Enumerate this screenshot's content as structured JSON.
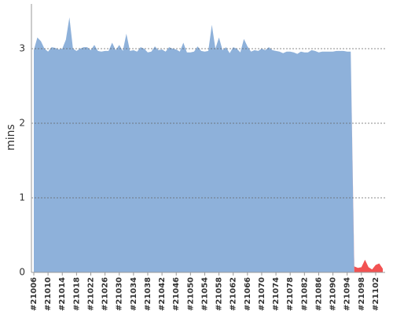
{
  "chart_data": {
    "type": "stacked_area",
    "ylabel": "mins",
    "categories": [
      "#21006",
      null,
      null,
      null,
      "#21010",
      null,
      null,
      null,
      "#21014",
      null,
      null,
      null,
      "#21018",
      null,
      null,
      null,
      "#21022",
      null,
      null,
      null,
      "#21026",
      null,
      null,
      null,
      "#21030",
      null,
      null,
      null,
      "#21034",
      null,
      null,
      null,
      "#21038",
      null,
      null,
      null,
      "#21042",
      null,
      null,
      null,
      "#21046",
      null,
      null,
      null,
      "#21050",
      null,
      null,
      null,
      "#21054",
      null,
      null,
      null,
      "#21058",
      null,
      null,
      null,
      "#21062",
      null,
      null,
      null,
      "#21066",
      null,
      null,
      null,
      "#21070",
      null,
      null,
      null,
      "#21074",
      null,
      null,
      null,
      "#21078",
      null,
      null,
      null,
      "#21082",
      null,
      null,
      null,
      "#21086",
      null,
      null,
      null,
      "#21090",
      null,
      null,
      null,
      "#21094",
      null,
      null,
      null,
      "#21098",
      null,
      null,
      null,
      "#21102",
      null,
      null
    ],
    "series": [
      {
        "color": "#8eb1da",
        "values": [
          2.98,
          3.15,
          3.1,
          3.0,
          2.96,
          3.02,
          3.01,
          2.99,
          3.0,
          3.12,
          3.42,
          3.0,
          2.97,
          3.0,
          3.02,
          3.02,
          2.98,
          3.05,
          2.97,
          2.96,
          2.97,
          2.97,
          3.08,
          2.98,
          3.05,
          2.97,
          3.2,
          2.97,
          2.98,
          2.96,
          3.02,
          3.0,
          2.95,
          2.96,
          3.03,
          2.98,
          2.99,
          2.96,
          3.02,
          3.0,
          2.99,
          2.96,
          3.08,
          2.95,
          2.95,
          2.96,
          3.03,
          2.97,
          2.96,
          2.97,
          3.32,
          3.0,
          3.15,
          2.98,
          3.02,
          2.94,
          3.02,
          3.0,
          2.95,
          3.13,
          3.03,
          2.96,
          2.98,
          2.97,
          3.0,
          2.98,
          3.02,
          2.98,
          2.97,
          2.96,
          2.94,
          2.96,
          2.96,
          2.95,
          2.93,
          2.96,
          2.95,
          2.95,
          2.98,
          2.97,
          2.95,
          2.96,
          2.96,
          2.96,
          2.96,
          2.97,
          2.97,
          2.97,
          2.96,
          2.96,
          0,
          0,
          0,
          0,
          0,
          0,
          0,
          0,
          0
        ]
      },
      {
        "color": "#f25252",
        "values": [
          0,
          0,
          0,
          0,
          0,
          0,
          0,
          0,
          0,
          0,
          0,
          0,
          0,
          0,
          0,
          0,
          0,
          0,
          0,
          0,
          0,
          0,
          0,
          0,
          0,
          0,
          0,
          0,
          0,
          0,
          0,
          0,
          0,
          0,
          0,
          0,
          0,
          0,
          0,
          0,
          0,
          0,
          0,
          0,
          0,
          0,
          0,
          0,
          0,
          0,
          0,
          0,
          0,
          0,
          0,
          0,
          0,
          0,
          0,
          0,
          0,
          0,
          0,
          0,
          0,
          0,
          0,
          0,
          0,
          0,
          0,
          0,
          0,
          0,
          0,
          0,
          0,
          0,
          0,
          0,
          0,
          0,
          0,
          0,
          0,
          0,
          0,
          0,
          0,
          0,
          0.08,
          0.06,
          0.07,
          0.17,
          0.07,
          0.04,
          0.1,
          0.12,
          0.05
        ]
      }
    ],
    "ylim": [
      0,
      3.6
    ],
    "yticks": [
      0,
      1,
      2,
      3
    ],
    "grid": true
  }
}
